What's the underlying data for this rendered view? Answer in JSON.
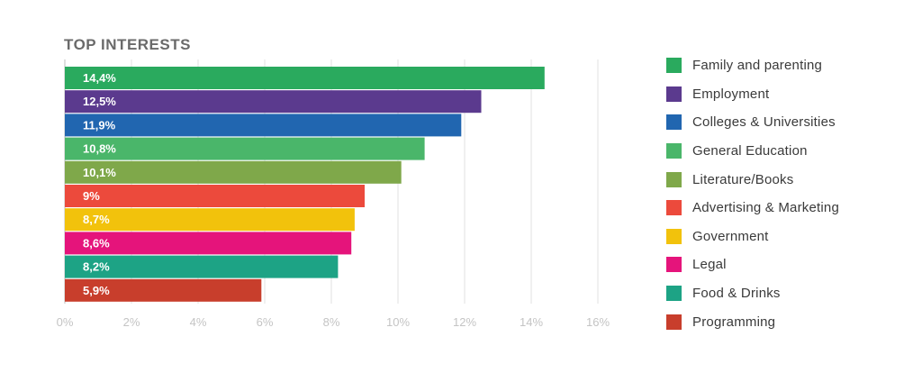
{
  "chart_data": {
    "type": "bar",
    "orientation": "horizontal",
    "title": "TOP INTERESTS",
    "xlim": [
      0,
      16
    ],
    "x_ticks": [
      "0%",
      "2%",
      "4%",
      "6%",
      "8%",
      "10%",
      "12%",
      "14%",
      "16%"
    ],
    "grid": true,
    "legend_position": "right",
    "categories": [
      "Family and parenting",
      "Employment",
      "Colleges & Universities",
      "General Education",
      "Literature/Books",
      "Advertising & Marketing",
      "Government",
      "Legal",
      "Food & Drinks",
      "Programming"
    ],
    "values": [
      14.4,
      12.5,
      11.9,
      10.8,
      10.1,
      9,
      8.7,
      8.6,
      8.2,
      5.9
    ],
    "value_labels": [
      "14,4%",
      "12,5%",
      "11,9%",
      "10,8%",
      "10,1%",
      "9%",
      "8,7%",
      "8,6%",
      "8,2%",
      "5,9%"
    ],
    "colors": [
      "#2aaa5e",
      "#5b3a8e",
      "#2166b0",
      "#4ab66a",
      "#7fa84a",
      "#ec4a3c",
      "#f2c20c",
      "#e5147b",
      "#1da385",
      "#c83e2c"
    ]
  }
}
